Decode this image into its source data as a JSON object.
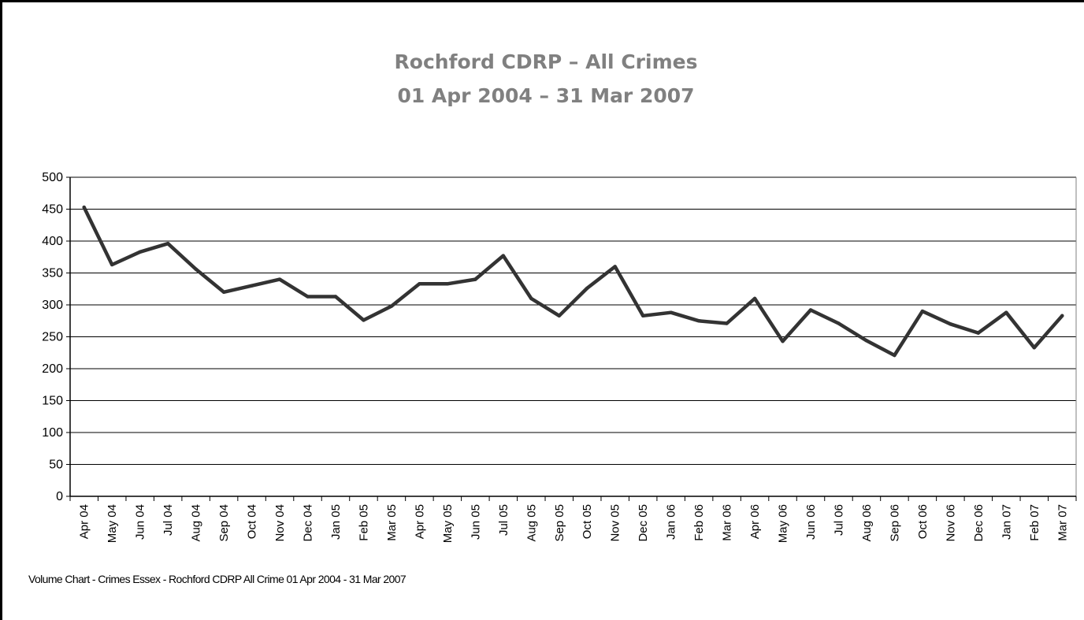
{
  "chart_data": {
    "type": "line",
    "title": "Rochford CDRP – All Crimes",
    "subtitle": "01 Apr 2004 – 31 Mar 2007",
    "xlabel": "",
    "ylabel": "",
    "ylim": [
      0,
      500
    ],
    "yticks": [
      0,
      50,
      100,
      150,
      200,
      250,
      300,
      350,
      400,
      450,
      500
    ],
    "grid": "horizontal",
    "legend": "none",
    "line_color": "#333333",
    "categories": [
      "Apr 04",
      "May 04",
      "Jun 04",
      "Jul 04",
      "Aug 04",
      "Sep 04",
      "Oct 04",
      "Nov 04",
      "Dec 04",
      "Jan 05",
      "Feb 05",
      "Mar 05",
      "Apr 05",
      "May 05",
      "Jun 05",
      "Jul 05",
      "Aug 05",
      "Sep 05",
      "Oct 05",
      "Nov 05",
      "Dec 05",
      "Jan 06",
      "Feb 06",
      "Mar 06",
      "Apr 06",
      "May 06",
      "Jun 06",
      "Jul 06",
      "Aug 06",
      "Sep 06",
      "Oct 06",
      "Nov 06",
      "Dec 06",
      "Jan 07",
      "Feb 07",
      "Mar 07"
    ],
    "values": [
      453,
      363,
      383,
      396,
      356,
      320,
      330,
      340,
      313,
      313,
      276,
      298,
      333,
      333,
      340,
      377,
      310,
      283,
      326,
      360,
      283,
      288,
      275,
      271,
      310,
      243,
      292,
      271,
      244,
      221,
      290,
      270,
      256,
      288,
      233,
      283
    ]
  },
  "footnote": "Volume Chart  - Crimes Essex - Rochford CDRP All Crime 01 Apr 2004 - 31 Mar 2007"
}
